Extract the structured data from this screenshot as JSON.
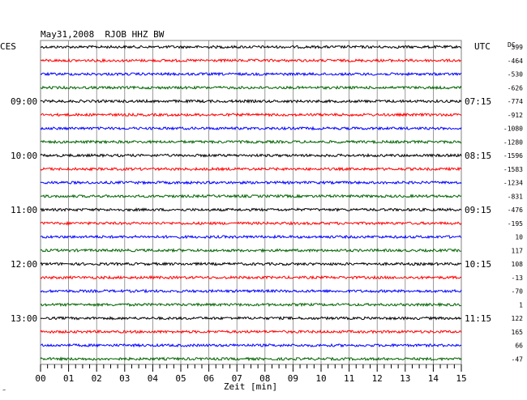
{
  "header": {
    "title": "May31,2008  RJOB HHZ BW",
    "left_tz": "CES",
    "right_tz": "UTC",
    "right_col": "DC"
  },
  "xaxis": {
    "label": "Zeit [min]",
    "ticks": [
      "00",
      "01",
      "02",
      "03",
      "04",
      "05",
      "06",
      "07",
      "08",
      "09",
      "10",
      "11",
      "12",
      "13",
      "14",
      "15"
    ],
    "range": [
      0,
      15
    ]
  },
  "left_time_labels": [
    "09:00",
    "10:00",
    "11:00",
    "12:00",
    "13:00"
  ],
  "right_time_labels": [
    "07:15",
    "08:15",
    "09:15",
    "10:15",
    "11:15"
  ],
  "footer_mark": "‴",
  "colors": {
    "black": "#000000",
    "red": "#ff0000",
    "blue": "#0000ff",
    "green": "#006400",
    "grid": "#808080"
  },
  "chart_data": {
    "type": "line",
    "title": "May31,2008  RJOB HHZ BW",
    "xlabel": "Zeit [min]",
    "xlim": [
      0,
      15
    ],
    "grid": true,
    "trace_colors": [
      "black",
      "red",
      "blue",
      "green"
    ],
    "trace_count": 24,
    "dc_values": [
      "399",
      "-464",
      "-530",
      "-626",
      "-774",
      "-912",
      "-1080",
      "-1280",
      "-1596",
      "-1583",
      "-1234",
      "-831",
      "-476",
      "-195",
      "10",
      "117",
      "108",
      "-13",
      "-70",
      "1",
      "122",
      "165",
      "66",
      "-47"
    ],
    "hour_lines": [
      {
        "trace": 4,
        "local": "09:00",
        "utc": "07:15"
      },
      {
        "trace": 8,
        "local": "10:00",
        "utc": "08:15"
      },
      {
        "trace": 12,
        "local": "11:00",
        "utc": "09:15"
      },
      {
        "trace": 16,
        "local": "12:00",
        "utc": "10:15"
      },
      {
        "trace": 20,
        "local": "13:00",
        "utc": "11:15"
      }
    ]
  }
}
